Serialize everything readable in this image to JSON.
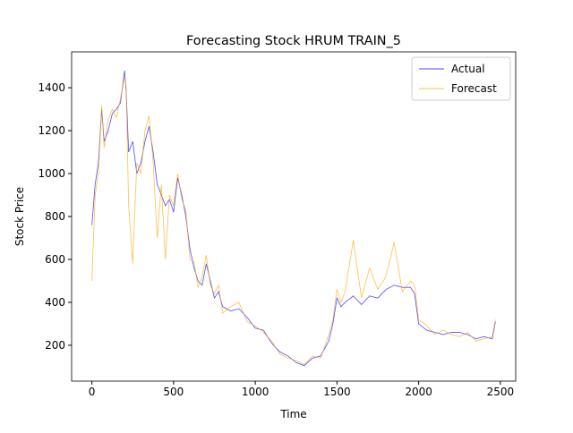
{
  "chart_data": {
    "type": "line",
    "title": "Forecasting Stock HRUM TRAIN_5",
    "x_label": "Time",
    "y_label": "Stock Price",
    "x": [
      0,
      20,
      40,
      60,
      75,
      100,
      125,
      150,
      175,
      200,
      210,
      225,
      250,
      275,
      300,
      325,
      350,
      375,
      400,
      425,
      450,
      475,
      500,
      525,
      550,
      575,
      600,
      625,
      650,
      675,
      700,
      725,
      750,
      775,
      800,
      850,
      900,
      950,
      1000,
      1050,
      1100,
      1150,
      1200,
      1250,
      1300,
      1350,
      1400,
      1450,
      1475,
      1500,
      1525,
      1550,
      1600,
      1650,
      1700,
      1750,
      1800,
      1850,
      1900,
      1950,
      1975,
      2000,
      2050,
      2100,
      2150,
      2200,
      2250,
      2300,
      2350,
      2400,
      2450,
      2470
    ],
    "series": [
      {
        "name": "Actual",
        "color": "#0000ff",
        "values": [
          760,
          950,
          1050,
          1300,
          1150,
          1200,
          1280,
          1300,
          1330,
          1480,
          1380,
          1100,
          1150,
          1000,
          1050,
          1150,
          1220,
          1100,
          950,
          900,
          850,
          880,
          820,
          980,
          900,
          800,
          650,
          560,
          500,
          480,
          580,
          500,
          420,
          450,
          380,
          360,
          370,
          330,
          280,
          270,
          210,
          170,
          150,
          120,
          105,
          140,
          150,
          220,
          300,
          420,
          380,
          400,
          430,
          390,
          430,
          420,
          460,
          480,
          470,
          470,
          440,
          300,
          270,
          260,
          250,
          260,
          260,
          250,
          230,
          240,
          230,
          310
        ]
      },
      {
        "name": "Forecast",
        "color": "#ffa500",
        "values": [
          500,
          900,
          1000,
          1320,
          1120,
          1250,
          1300,
          1260,
          1350,
          1450,
          1400,
          850,
          580,
          1050,
          1000,
          1200,
          1270,
          1050,
          700,
          950,
          600,
          900,
          850,
          1000,
          880,
          830,
          600,
          590,
          470,
          520,
          620,
          480,
          440,
          480,
          350,
          380,
          400,
          310,
          290,
          260,
          220,
          160,
          140,
          130,
          110,
          150,
          140,
          250,
          320,
          460,
          400,
          450,
          690,
          420,
          560,
          460,
          520,
          680,
          450,
          500,
          480,
          320,
          290,
          250,
          270,
          250,
          240,
          260,
          220,
          230,
          240,
          320
        ]
      }
    ],
    "xlim": [
      -124,
      2594
    ],
    "ylim": [
      33,
      1567
    ],
    "xticks": [
      0,
      500,
      1000,
      1500,
      2000,
      2500
    ],
    "yticks": [
      200,
      400,
      600,
      800,
      1000,
      1200,
      1400
    ],
    "legend": "upper right",
    "grid": false
  }
}
